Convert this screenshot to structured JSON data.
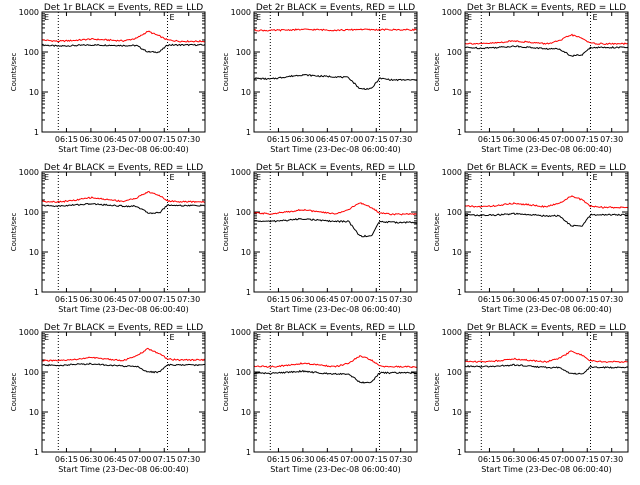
{
  "common": {
    "ylabel": "Counts/sec",
    "xlabel": "Start Time (23-Dec-08 06:00:40)",
    "xticks": [
      "06:15",
      "06:30",
      "06:45",
      "07:00",
      "07:15",
      "07:30"
    ],
    "yticks": [
      "1",
      "10",
      "100",
      "1000"
    ],
    "marker": "E",
    "colors": {
      "events": "#000000",
      "lld": "#ff0000",
      "frame": "#000000"
    }
  },
  "chart_data": [
    {
      "type": "line",
      "title": "Det 1r BLACK = Events, RED = LLD",
      "ylabel": "Counts/sec",
      "xlabel": "Start Time (23-Dec-08 06:00:40)",
      "xlim": [
        "06:00",
        "07:40"
      ],
      "ylim": [
        1,
        1000
      ],
      "yscale": "log",
      "vlines": [
        "06:10",
        "07:17"
      ],
      "x": [
        "06:00",
        "06:10",
        "06:20",
        "06:30",
        "06:40",
        "06:50",
        "06:58",
        "07:05",
        "07:12",
        "07:17",
        "07:25",
        "07:35",
        "07:40"
      ],
      "series": [
        {
          "name": "Events",
          "color": "#000000",
          "values": [
            150,
            140,
            145,
            150,
            148,
            145,
            145,
            100,
            100,
            150,
            150,
            150,
            150
          ]
        },
        {
          "name": "LLD",
          "color": "#ff0000",
          "values": [
            200,
            185,
            195,
            210,
            200,
            190,
            220,
            330,
            250,
            200,
            185,
            185,
            185
          ]
        }
      ]
    },
    {
      "type": "line",
      "title": "Det 2r BLACK = Events, RED = LLD",
      "ylabel": "Counts/sec",
      "xlabel": "Start Time (23-Dec-08 06:00:40)",
      "xlim": [
        "06:00",
        "07:40"
      ],
      "ylim": [
        1,
        1000
      ],
      "yscale": "log",
      "vlines": [
        "06:10",
        "07:17"
      ],
      "x": [
        "06:00",
        "06:10",
        "06:20",
        "06:30",
        "06:40",
        "06:50",
        "06:58",
        "07:05",
        "07:12",
        "07:17",
        "07:25",
        "07:35",
        "07:40"
      ],
      "series": [
        {
          "name": "Events",
          "color": "#000000",
          "values": [
            22,
            21,
            24,
            27,
            25,
            24,
            23,
            12,
            12,
            22,
            20,
            20,
            20
          ]
        },
        {
          "name": "LLD",
          "color": "#ff0000",
          "values": [
            350,
            345,
            355,
            365,
            360,
            350,
            355,
            370,
            360,
            360,
            360,
            360,
            360
          ]
        }
      ]
    },
    {
      "type": "line",
      "title": "Det 3r BLACK = Events, RED = LLD",
      "ylabel": "Counts/sec",
      "xlabel": "Start Time (23-Dec-08 06:00:40)",
      "xlim": [
        "06:00",
        "07:40"
      ],
      "ylim": [
        1,
        1000
      ],
      "yscale": "log",
      "vlines": [
        "06:10",
        "07:17"
      ],
      "x": [
        "06:00",
        "06:10",
        "06:20",
        "06:30",
        "06:40",
        "06:50",
        "06:58",
        "07:05",
        "07:12",
        "07:17",
        "07:25",
        "07:35",
        "07:40"
      ],
      "series": [
        {
          "name": "Events",
          "color": "#000000",
          "values": [
            130,
            125,
            130,
            140,
            130,
            120,
            120,
            80,
            85,
            130,
            130,
            130,
            130
          ]
        },
        {
          "name": "LLD",
          "color": "#ff0000",
          "values": [
            165,
            160,
            170,
            190,
            175,
            160,
            190,
            270,
            220,
            165,
            160,
            160,
            160
          ]
        }
      ]
    },
    {
      "type": "line",
      "title": "Det 4r BLACK = Events, RED = LLD",
      "ylabel": "Counts/sec",
      "xlabel": "Start Time (23-Dec-08 06:00:40)",
      "xlim": [
        "06:00",
        "07:40"
      ],
      "ylim": [
        1,
        1000
      ],
      "yscale": "log",
      "vlines": [
        "06:10",
        "07:17"
      ],
      "x": [
        "06:00",
        "06:10",
        "06:20",
        "06:30",
        "06:40",
        "06:50",
        "06:58",
        "07:05",
        "07:12",
        "07:17",
        "07:25",
        "07:35",
        "07:40"
      ],
      "series": [
        {
          "name": "Events",
          "color": "#000000",
          "values": [
            145,
            140,
            150,
            160,
            150,
            140,
            140,
            95,
            95,
            150,
            145,
            145,
            145
          ]
        },
        {
          "name": "LLD",
          "color": "#ff0000",
          "values": [
            185,
            180,
            195,
            230,
            205,
            185,
            225,
            320,
            260,
            190,
            180,
            180,
            180
          ]
        }
      ]
    },
    {
      "type": "line",
      "title": "Det 5r BLACK = Events, RED = LLD",
      "ylabel": "Counts/sec",
      "xlabel": "Start Time (23-Dec-08 06:00:40)",
      "xlim": [
        "06:00",
        "07:40"
      ],
      "ylim": [
        1,
        1000
      ],
      "yscale": "log",
      "vlines": [
        "06:10",
        "07:17"
      ],
      "x": [
        "06:00",
        "06:10",
        "06:20",
        "06:30",
        "06:40",
        "06:50",
        "06:58",
        "07:05",
        "07:12",
        "07:17",
        "07:25",
        "07:35",
        "07:40"
      ],
      "series": [
        {
          "name": "Events",
          "color": "#000000",
          "values": [
            60,
            58,
            62,
            68,
            62,
            58,
            58,
            25,
            25,
            58,
            55,
            55,
            55
          ]
        },
        {
          "name": "LLD",
          "color": "#ff0000",
          "values": [
            95,
            90,
            100,
            115,
            100,
            90,
            115,
            170,
            130,
            95,
            88,
            88,
            88
          ]
        }
      ]
    },
    {
      "type": "line",
      "title": "Det 6r BLACK = Events, RED = LLD",
      "ylabel": "Counts/sec",
      "xlabel": "Start Time (23-Dec-08 06:00:40)",
      "xlim": [
        "06:00",
        "07:40"
      ],
      "ylim": [
        1,
        1000
      ],
      "yscale": "log",
      "vlines": [
        "06:10",
        "07:17"
      ],
      "x": [
        "06:00",
        "06:10",
        "06:20",
        "06:30",
        "06:40",
        "06:50",
        "06:58",
        "07:05",
        "07:12",
        "07:17",
        "07:25",
        "07:35",
        "07:40"
      ],
      "series": [
        {
          "name": "Events",
          "color": "#000000",
          "values": [
            85,
            82,
            85,
            90,
            85,
            80,
            80,
            45,
            45,
            85,
            85,
            85,
            85
          ]
        },
        {
          "name": "LLD",
          "color": "#ff0000",
          "values": [
            140,
            135,
            145,
            165,
            150,
            135,
            165,
            250,
            200,
            140,
            130,
            130,
            130
          ]
        }
      ]
    },
    {
      "type": "line",
      "title": "Det 7r BLACK = Events, RED = LLD",
      "ylabel": "Counts/sec",
      "xlabel": "Start Time (23-Dec-08 06:00:40)",
      "xlim": [
        "06:00",
        "07:40"
      ],
      "ylim": [
        1,
        1000
      ],
      "yscale": "log",
      "vlines": [
        "06:10",
        "07:17"
      ],
      "x": [
        "06:00",
        "06:10",
        "06:20",
        "06:30",
        "06:40",
        "06:50",
        "06:58",
        "07:05",
        "07:12",
        "07:17",
        "07:25",
        "07:35",
        "07:40"
      ],
      "series": [
        {
          "name": "Events",
          "color": "#000000",
          "values": [
            150,
            145,
            155,
            160,
            150,
            140,
            140,
            100,
            100,
            150,
            150,
            150,
            150
          ]
        },
        {
          "name": "LLD",
          "color": "#ff0000",
          "values": [
            195,
            190,
            205,
            230,
            210,
            195,
            250,
            380,
            290,
            210,
            200,
            200,
            200
          ]
        }
      ]
    },
    {
      "type": "line",
      "title": "Det 8r BLACK = Events, RED = LLD",
      "ylabel": "Counts/sec",
      "xlabel": "Start Time (23-Dec-08 06:00:40)",
      "xlim": [
        "06:00",
        "07:40"
      ],
      "ylim": [
        1,
        1000
      ],
      "yscale": "log",
      "vlines": [
        "06:10",
        "07:17"
      ],
      "x": [
        "06:00",
        "06:10",
        "06:20",
        "06:30",
        "06:40",
        "06:50",
        "06:58",
        "07:05",
        "07:12",
        "07:17",
        "07:25",
        "07:35",
        "07:40"
      ],
      "series": [
        {
          "name": "Events",
          "color": "#000000",
          "values": [
            95,
            92,
            98,
            105,
            95,
            90,
            90,
            55,
            55,
            95,
            95,
            95,
            95
          ]
        },
        {
          "name": "LLD",
          "color": "#ff0000",
          "values": [
            140,
            135,
            145,
            165,
            150,
            135,
            165,
            250,
            200,
            140,
            135,
            135,
            135
          ]
        }
      ]
    },
    {
      "type": "line",
      "title": "Det 9r BLACK = Events, RED = LLD",
      "ylabel": "Counts/sec",
      "xlabel": "Start Time (23-Dec-08 06:00:40)",
      "xlim": [
        "06:00",
        "07:40"
      ],
      "ylim": [
        1,
        1000
      ],
      "yscale": "log",
      "vlines": [
        "06:10",
        "07:17"
      ],
      "x": [
        "06:00",
        "06:10",
        "06:20",
        "06:30",
        "06:40",
        "06:50",
        "06:58",
        "07:05",
        "07:12",
        "07:17",
        "07:25",
        "07:35",
        "07:40"
      ],
      "series": [
        {
          "name": "Events",
          "color": "#000000",
          "values": [
            140,
            135,
            140,
            150,
            140,
            130,
            130,
            90,
            90,
            135,
            130,
            130,
            130
          ]
        },
        {
          "name": "LLD",
          "color": "#ff0000",
          "values": [
            185,
            180,
            190,
            215,
            195,
            180,
            220,
            330,
            260,
            190,
            180,
            180,
            180
          ]
        }
      ]
    }
  ]
}
